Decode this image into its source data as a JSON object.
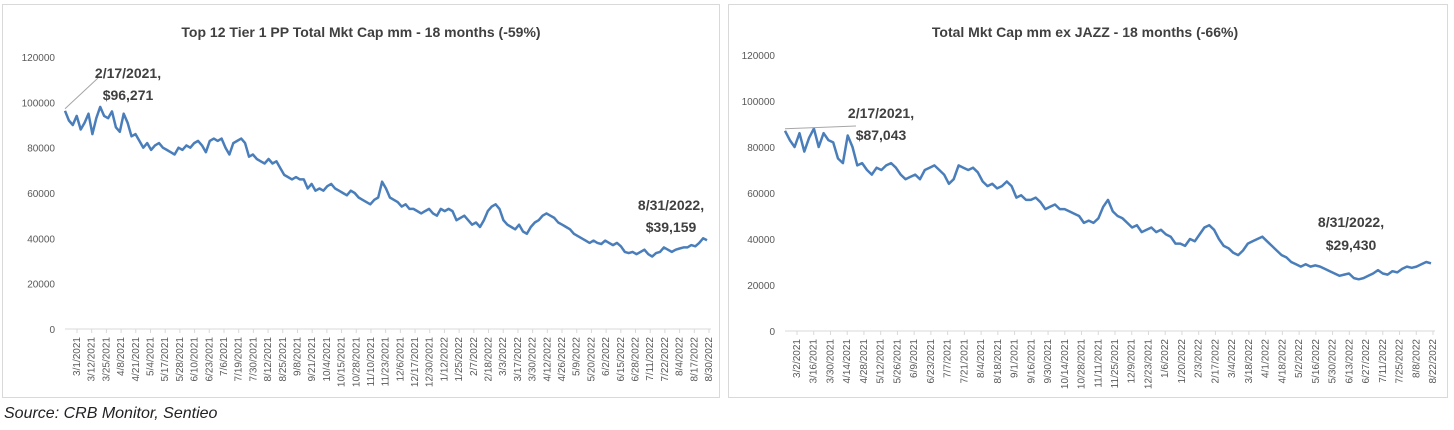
{
  "source": "Source: CRB Monitor, Sentieo",
  "chart_data": [
    {
      "type": "line",
      "title": "Top 12 Tier 1 PP Total Mkt Cap mm - 18 months (-59%)",
      "ylim": [
        0,
        120000
      ],
      "yticks": [
        "120000",
        "100000",
        "80000",
        "60000",
        "40000",
        "20000",
        "0"
      ],
      "xticks": [
        "3/1/2021",
        "3/12/2021",
        "3/25/2021",
        "4/8/2021",
        "4/21/2021",
        "5/4/2021",
        "5/17/2021",
        "5/28/2021",
        "6/10/2021",
        "6/23/2021",
        "7/6/2021",
        "7/19/2021",
        "7/30/2021",
        "8/12/2021",
        "8/25/2021",
        "9/8/2021",
        "9/21/2021",
        "10/4/2021",
        "10/15/2021",
        "10/28/2021",
        "11/10/2021",
        "11/23/2021",
        "12/6/2021",
        "12/17/2021",
        "12/30/2021",
        "1/12/2022",
        "1/25/2022",
        "2/7/2022",
        "2/18/2022",
        "3/3/2022",
        "3/17/2022",
        "3/30/2022",
        "4/12/2022",
        "4/26/2022",
        "5/9/2022",
        "5/20/2022",
        "6/2/2022",
        "6/15/2022",
        "6/28/2022",
        "7/11/2022",
        "7/22/2022",
        "8/4/2022",
        "8/17/2022",
        "8/30/2022"
      ],
      "grid": false,
      "series": [
        {
          "color": "#4a7ebb",
          "values": [
            96271,
            92000,
            90000,
            94000,
            88000,
            91000,
            95000,
            86000,
            93000,
            98000,
            94000,
            93000,
            96000,
            89000,
            87000,
            95000,
            91000,
            85000,
            86000,
            83000,
            80000,
            82000,
            79000,
            81000,
            82000,
            80000,
            79000,
            78000,
            77000,
            80000,
            79000,
            81000,
            80000,
            82000,
            83000,
            81000,
            78000,
            83000,
            84000,
            83000,
            84000,
            80000,
            77000,
            82000,
            83000,
            84000,
            82000,
            76000,
            77000,
            75000,
            74000,
            73000,
            75000,
            73000,
            74000,
            71000,
            68000,
            67000,
            66000,
            67000,
            66000,
            66000,
            62000,
            64000,
            61000,
            62000,
            61000,
            63000,
            64000,
            62000,
            61000,
            60000,
            59000,
            61000,
            60000,
            58000,
            57000,
            56000,
            55000,
            57000,
            58000,
            65000,
            62000,
            58000,
            57000,
            56000,
            54000,
            55000,
            53000,
            53000,
            52000,
            51000,
            52000,
            53000,
            51000,
            50000,
            53000,
            52000,
            53000,
            52000,
            48000,
            49000,
            50000,
            48000,
            46000,
            47000,
            45000,
            48000,
            52000,
            54000,
            55000,
            53000,
            48000,
            46000,
            45000,
            44000,
            46000,
            43000,
            42000,
            45000,
            47000,
            48000,
            50000,
            51000,
            50000,
            49000,
            47000,
            46000,
            45000,
            44000,
            42000,
            41000,
            40000,
            39000,
            38000,
            39000,
            38000,
            37500,
            39000,
            38000,
            37000,
            38000,
            36500,
            34000,
            33500,
            34000,
            33000,
            34000,
            35000,
            33000,
            32000,
            33500,
            34000,
            36000,
            35000,
            34000,
            35000,
            35500,
            36000,
            36000,
            37000,
            36500,
            38000,
            40000,
            39159
          ],
          "annotations": [
            {
              "label_date": "2/17/2021,",
              "label_value": "$96,271",
              "index": 0
            },
            {
              "label_date": "8/31/2022,",
              "label_value": "$39,159",
              "index": -1
            }
          ]
        }
      ]
    },
    {
      "type": "line",
      "title": "Total Mkt Cap mm ex JAZZ - 18 months (-66%)",
      "ylim": [
        0,
        120000
      ],
      "yticks": [
        "120000",
        "100000",
        "80000",
        "60000",
        "40000",
        "20000",
        "0"
      ],
      "xticks": [
        "3/2/2021",
        "3/16/2021",
        "3/30/2021",
        "4/14/2021",
        "4/28/2021",
        "5/12/2021",
        "5/26/2021",
        "6/9/2021",
        "6/23/2021",
        "7/7/2021",
        "7/21/2021",
        "8/4/2021",
        "8/18/2021",
        "9/1/2021",
        "9/16/2021",
        "9/30/2021",
        "10/14/2021",
        "10/28/2021",
        "11/11/2021",
        "11/25/2021",
        "12/9/2021",
        "12/23/2021",
        "1/6/2022",
        "1/20/2022",
        "2/3/2022",
        "2/17/2022",
        "3/4/2022",
        "3/18/2022",
        "4/1/2022",
        "4/18/2022",
        "5/2/2022",
        "5/16/2022",
        "5/30/2022",
        "6/13/2022",
        "6/27/2022",
        "7/11/2022",
        "7/25/2022",
        "8/8/2022",
        "8/22/2022"
      ],
      "grid": false,
      "series": [
        {
          "color": "#4a7ebb",
          "values": [
            87043,
            83000,
            80000,
            86000,
            78000,
            84000,
            88000,
            80000,
            86000,
            83000,
            82000,
            75000,
            73000,
            85000,
            80000,
            72000,
            73000,
            70000,
            68000,
            71000,
            70000,
            72000,
            73000,
            71000,
            68000,
            66000,
            67000,
            68000,
            66000,
            70000,
            71000,
            72000,
            70000,
            68000,
            64000,
            66000,
            72000,
            71000,
            70000,
            71000,
            69000,
            65000,
            63000,
            64000,
            62000,
            63000,
            65000,
            63000,
            58000,
            59000,
            57000,
            57000,
            58000,
            56000,
            53000,
            54000,
            55000,
            53000,
            53000,
            52000,
            51000,
            50000,
            47000,
            48000,
            47000,
            49000,
            54000,
            57000,
            52000,
            50000,
            49000,
            47000,
            45000,
            46000,
            43000,
            44000,
            45000,
            43000,
            44000,
            42000,
            41000,
            38000,
            38000,
            37000,
            40000,
            39000,
            42000,
            45000,
            46000,
            44000,
            40000,
            37000,
            36000,
            34000,
            33000,
            35000,
            38000,
            39000,
            40000,
            41000,
            39000,
            37000,
            35000,
            33000,
            32000,
            30000,
            29000,
            28000,
            29000,
            28000,
            28500,
            28000,
            27000,
            26000,
            25000,
            24000,
            24500,
            25000,
            23000,
            22500,
            23000,
            24000,
            25000,
            26500,
            25000,
            24500,
            26000,
            25500,
            27000,
            28000,
            27500,
            28000,
            29000,
            30000,
            29430
          ],
          "annotations": [
            {
              "label_date": "2/17/2021,",
              "label_value": "$87,043",
              "index": 0
            },
            {
              "label_date": "8/31/2022,",
              "label_value": "$29,430",
              "index": -1
            }
          ]
        }
      ]
    }
  ]
}
